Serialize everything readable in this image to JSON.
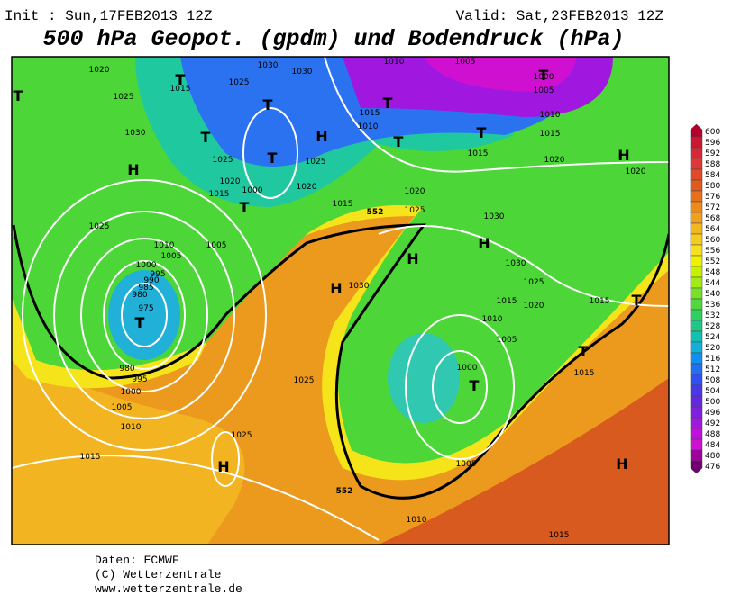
{
  "header": {
    "init": "Init : Sun,17FEB2013 12Z",
    "valid": "Valid: Sat,23FEB2013 12Z",
    "title": "500 hPa Geopot. (gpdm) und Bodendruck (hPa)"
  },
  "map": {
    "pressure_labels": [
      "1020",
      "1015",
      "1025",
      "1030",
      "1030",
      "1010",
      "1005",
      "1000",
      "1005",
      "1025",
      "1030",
      "1015",
      "1010",
      "1010",
      "1015",
      "1025",
      "1020",
      "1015",
      "1000",
      "1020",
      "1025",
      "1015",
      "1020",
      "1020",
      "1025",
      "1015",
      "1020",
      "1025",
      "1030",
      "1010",
      "1005",
      "1005",
      "1000",
      "995",
      "990",
      "985",
      "980",
      "975",
      "1030",
      "1030",
      "1025",
      "1020",
      "1015",
      "1010",
      "1015",
      "1005",
      "1015",
      "1000",
      "980",
      "995",
      "1000",
      "1005",
      "1010",
      "1015",
      "1025",
      "1025",
      "1005",
      "1010",
      "1015"
    ],
    "geopot_labels": [
      "552",
      "552"
    ],
    "centers": [
      "T",
      "T",
      "T",
      "T",
      "H",
      "T",
      "H",
      "T",
      "T",
      "T",
      "T",
      "T",
      "H",
      "H",
      "H",
      "H",
      "T",
      "T",
      "T",
      "T",
      "H",
      "H"
    ]
  },
  "colorbar": {
    "ticks": [
      600,
      596,
      592,
      588,
      584,
      580,
      576,
      572,
      568,
      564,
      560,
      556,
      552,
      548,
      544,
      540,
      536,
      532,
      528,
      524,
      520,
      516,
      512,
      508,
      504,
      500,
      496,
      492,
      488,
      484,
      480,
      476
    ],
    "colors": [
      "#b4002a",
      "#c81832",
      "#d82838",
      "#e03838",
      "#e04a28",
      "#e05a1e",
      "#e8701a",
      "#ee8a1a",
      "#f0a020",
      "#f2b820",
      "#f4cc1e",
      "#f8e01e",
      "#f0f000",
      "#c8f000",
      "#a0ec14",
      "#78e028",
      "#50d83c",
      "#30d060",
      "#20c888",
      "#10c0b0",
      "#10b0d8",
      "#1090f0",
      "#2070f0",
      "#3050f0",
      "#4838e8",
      "#6428e0",
      "#8020e0",
      "#a018e0",
      "#c010e0",
      "#d010d0",
      "#a000a0",
      "#700070"
    ]
  },
  "footer": [
    "Daten: ECMWF",
    "(C) Wetterzentrale",
    "www.wetterzentrale.de"
  ]
}
